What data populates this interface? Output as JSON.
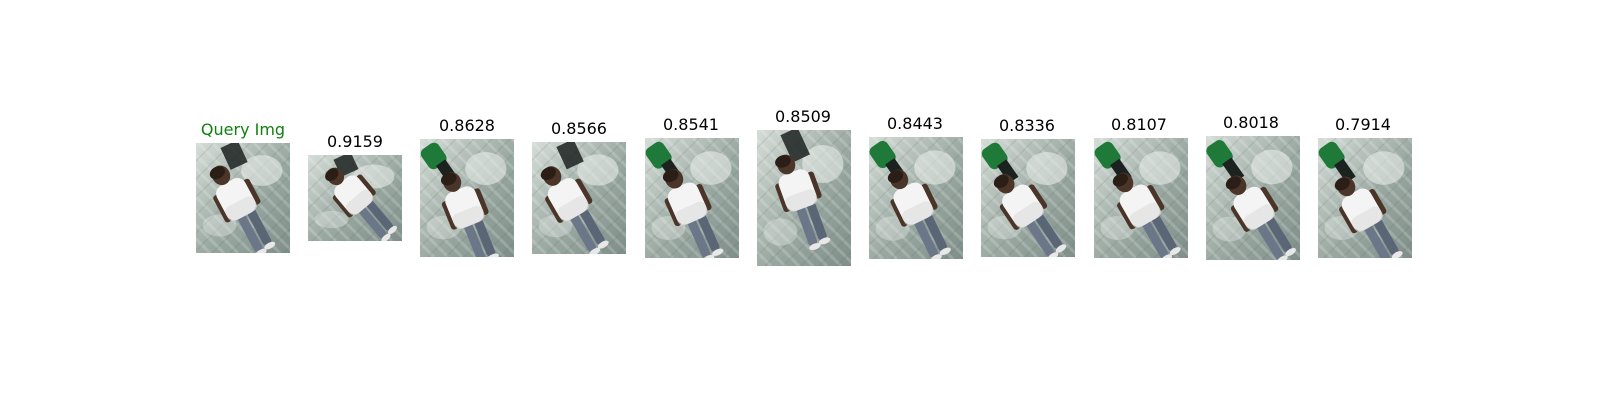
{
  "query": {
    "label": "Query Img"
  },
  "results": [
    {
      "score": "0.9159"
    },
    {
      "score": "0.8628"
    },
    {
      "score": "0.8566"
    },
    {
      "score": "0.8541"
    },
    {
      "score": "0.8509"
    },
    {
      "score": "0.8443"
    },
    {
      "score": "0.8336"
    },
    {
      "score": "0.8107"
    },
    {
      "score": "0.8018"
    },
    {
      "score": "0.7914"
    }
  ],
  "colors": {
    "query_label": "#108010",
    "score_label": "#000000",
    "ground": "#9aa8a2",
    "ground_light": "#d6ddd8",
    "shirt": "#f4f4f4",
    "pants": "#6b7788",
    "skin": "#4a3528",
    "bystander_green": "#1f7a3a",
    "bystander_dark": "#1c2220"
  }
}
